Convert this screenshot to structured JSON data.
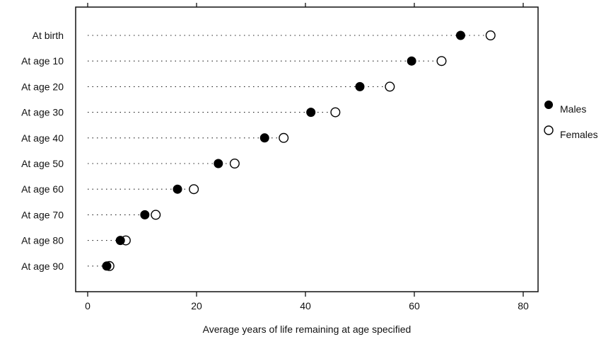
{
  "chart_data": {
    "type": "scatter",
    "style": "dot-plot",
    "categories": [
      "At birth",
      "At age 10",
      "At age 20",
      "At age 30",
      "At age 40",
      "At age 50",
      "At age 60",
      "At age 70",
      "At age 80",
      "At age 90"
    ],
    "series": [
      {
        "name": "Males",
        "marker": "filled-circle",
        "values": [
          68.5,
          59.5,
          50.0,
          41.0,
          32.5,
          24.0,
          16.5,
          10.5,
          6.0,
          3.5
        ]
      },
      {
        "name": "Females",
        "marker": "open-circle",
        "values": [
          74.0,
          65.0,
          55.5,
          45.5,
          36.0,
          27.0,
          19.5,
          12.5,
          7.0,
          4.0
        ]
      }
    ],
    "xlabel": "Average years of life remaining at age specified",
    "xlim": [
      0,
      80
    ],
    "xticks": [
      0,
      20,
      40,
      60,
      80
    ],
    "legend_position": "right",
    "grid": false,
    "guide_lines": "dotted"
  }
}
